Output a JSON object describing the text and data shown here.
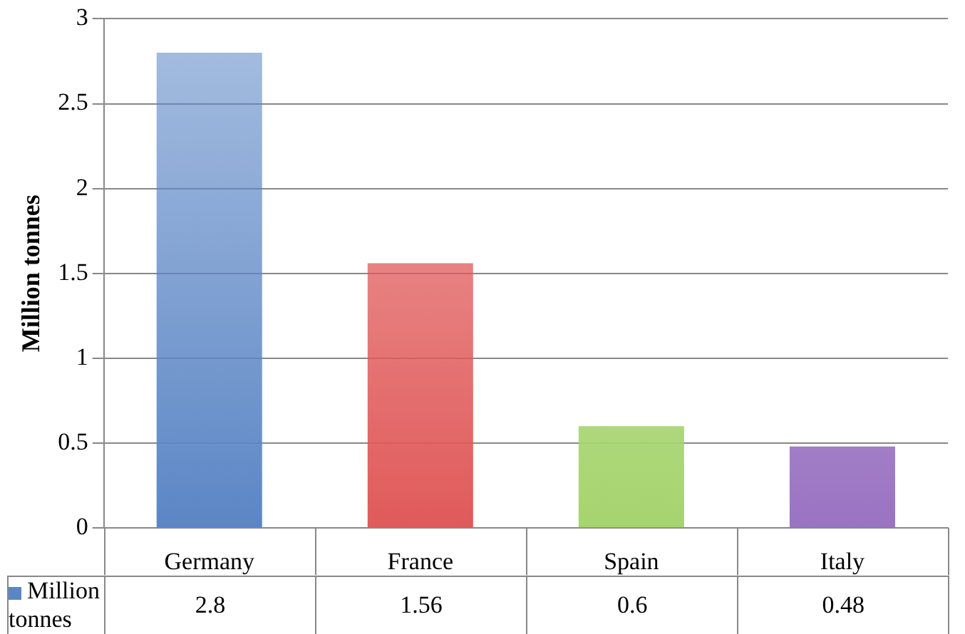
{
  "chart_data": {
    "type": "bar",
    "ylabel": "Million tonnes",
    "categories": [
      "Germany",
      "France",
      "Spain",
      "Italy"
    ],
    "series": [
      {
        "name": "Million tonnes",
        "color": "#5b86c5",
        "colors": [
          "#5b86c5",
          "#e05a5a",
          "#a6d46e",
          "#9a73c2"
        ],
        "values": [
          2.8,
          1.56,
          0.6,
          0.48
        ]
      }
    ],
    "ylim": [
      0,
      3
    ],
    "yticks": [
      0,
      0.5,
      1,
      1.5,
      2,
      2.5,
      3
    ],
    "grid": "y",
    "legend": "bottom left",
    "data_labels": true
  }
}
